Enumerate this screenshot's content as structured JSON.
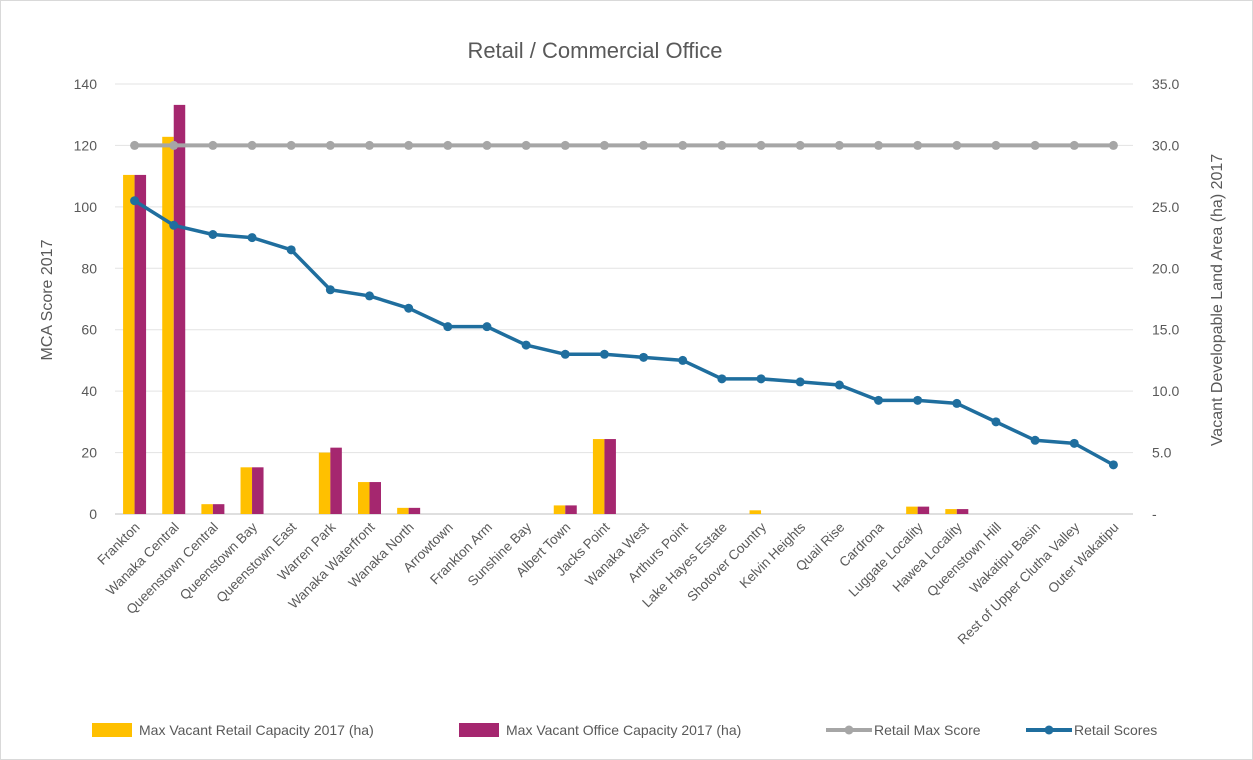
{
  "chart_data": {
    "type": "bar",
    "title": "Retail / Commercial Office",
    "ylabel": "MCA Score 2017",
    "y2label": "Vacant Developable Land Area (ha) 2017",
    "ylim": [
      0,
      140
    ],
    "y2lim": [
      0,
      35
    ],
    "yticks": [
      "0",
      "20",
      "40",
      "60",
      "80",
      "100",
      "120",
      "140"
    ],
    "y2ticks": [
      "-",
      "5.0",
      "10.0",
      "15.0",
      "20.0",
      "25.0",
      "30.0",
      "35.0"
    ],
    "grid": true,
    "legend_position": "bottom",
    "categories": [
      "Frankton",
      "Wanaka Central",
      "Queenstown Central",
      "Queenstown Bay",
      "Queenstown East",
      "Warren Park",
      "Wanaka Waterfront",
      "Wanaka North",
      "Arrowtown",
      "Frankton Arm",
      "Sunshine Bay",
      "Albert Town",
      "Jacks Point",
      "Wanaka West",
      "Arthurs Point",
      "Lake Hayes Estate",
      "Shotover Country",
      "Kelvin Heights",
      "Quail Rise",
      "Cardrona",
      "Luggate Locality",
      "Hawea Locality",
      "Queenstown Hill",
      "Wakatipu Basin",
      "Rest of Upper Clutha Valley",
      "Outer Wakatipu"
    ],
    "series": [
      {
        "name": "Max Vacant Retail Capacity 2017 (ha)",
        "kind": "bar",
        "axis": "right",
        "color": "#FFC000",
        "values": [
          27.6,
          30.7,
          0.8,
          3.8,
          0,
          5.0,
          2.6,
          0.5,
          0,
          0,
          0,
          0.7,
          6.1,
          0,
          0,
          0,
          0.3,
          0,
          0,
          0,
          0.6,
          0.4,
          0,
          0,
          0,
          0
        ]
      },
      {
        "name": "Max Vacant Office Capacity 2017 (ha)",
        "kind": "bar",
        "axis": "right",
        "color": "#A5276F",
        "values": [
          27.6,
          33.3,
          0.8,
          3.8,
          0,
          5.4,
          2.6,
          0.5,
          0,
          0,
          0,
          0.7,
          6.1,
          0,
          0,
          0,
          0,
          0,
          0,
          0,
          0.6,
          0.4,
          0,
          0,
          0,
          0
        ]
      },
      {
        "name": "Retail Max Score",
        "kind": "line",
        "axis": "left",
        "color": "#A6A6A6",
        "values": [
          120,
          120,
          120,
          120,
          120,
          120,
          120,
          120,
          120,
          120,
          120,
          120,
          120,
          120,
          120,
          120,
          120,
          120,
          120,
          120,
          120,
          120,
          120,
          120,
          120,
          120
        ]
      },
      {
        "name": "Retail Scores",
        "kind": "line",
        "axis": "left",
        "color": "#1F6E9E",
        "values": [
          102,
          94,
          91,
          90,
          86,
          73,
          71,
          67,
          61,
          61,
          55,
          52,
          52,
          51,
          50,
          44,
          44,
          43,
          42,
          37,
          37,
          36,
          30,
          24,
          23,
          16
        ]
      }
    ]
  }
}
